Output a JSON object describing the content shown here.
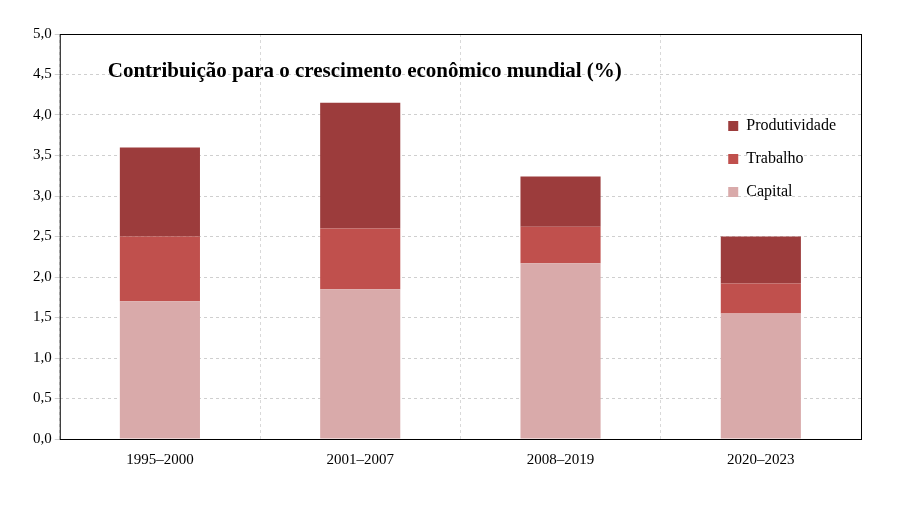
{
  "chart_data": {
    "type": "bar",
    "title": "Contribuição para o crescimento econômico mundial (%)",
    "categories": [
      "1995–2000",
      "2001–2007",
      "2008–2019",
      "2020–2023"
    ],
    "series": [
      {
        "name": "Capital",
        "color": "#d9aaaa",
        "values": [
          1.7,
          1.85,
          2.17,
          1.55
        ]
      },
      {
        "name": "Trabalho",
        "color": "#c0504d",
        "values": [
          0.8,
          0.75,
          0.45,
          0.37
        ]
      },
      {
        "name": "Produtividade",
        "color": "#9c3c3c",
        "values": [
          1.1,
          1.55,
          0.62,
          0.58
        ]
      }
    ],
    "ylim": [
      0,
      5
    ],
    "yticks": [
      {
        "value": 0,
        "label": "0,0"
      },
      {
        "value": 0.5,
        "label": "0,5"
      },
      {
        "value": 1,
        "label": "1,0"
      },
      {
        "value": 1.5,
        "label": "1,5"
      },
      {
        "value": 2,
        "label": "2,0"
      },
      {
        "value": 2.5,
        "label": "2,5"
      },
      {
        "value": 3,
        "label": "3,0"
      },
      {
        "value": 3.5,
        "label": "3,5"
      },
      {
        "value": 4,
        "label": "4,0"
      },
      {
        "value": 4.5,
        "label": "4,5"
      },
      {
        "value": 5,
        "label": "5,0"
      }
    ],
    "stacked": true,
    "grid": true,
    "legend": "upper right"
  }
}
